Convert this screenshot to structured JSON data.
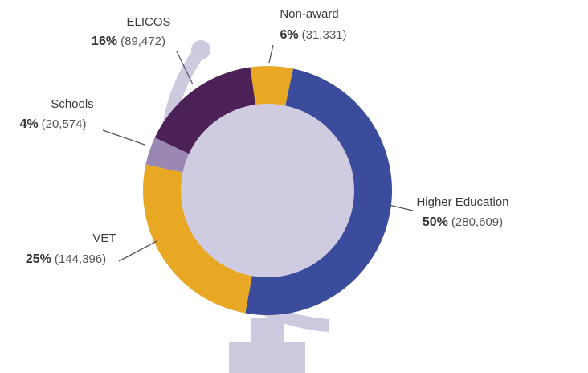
{
  "chart_data": {
    "type": "donut",
    "categories": [
      "Non-award",
      "Higher Education",
      "VET",
      "Schools",
      "ELICOS"
    ],
    "values": [
      31331,
      280609,
      144396,
      20574,
      89472
    ],
    "value_labels": [
      "(31,331)",
      "(280,609)",
      "(144,396)",
      "(20,574)",
      "(89,472)"
    ],
    "percent_labels": [
      "6%",
      "50%",
      "25%",
      "4%",
      "16%"
    ],
    "colors": [
      "#e9a823",
      "#3b4c9c",
      "#e9a823",
      "#9b87b3",
      "#4b2157"
    ]
  }
}
